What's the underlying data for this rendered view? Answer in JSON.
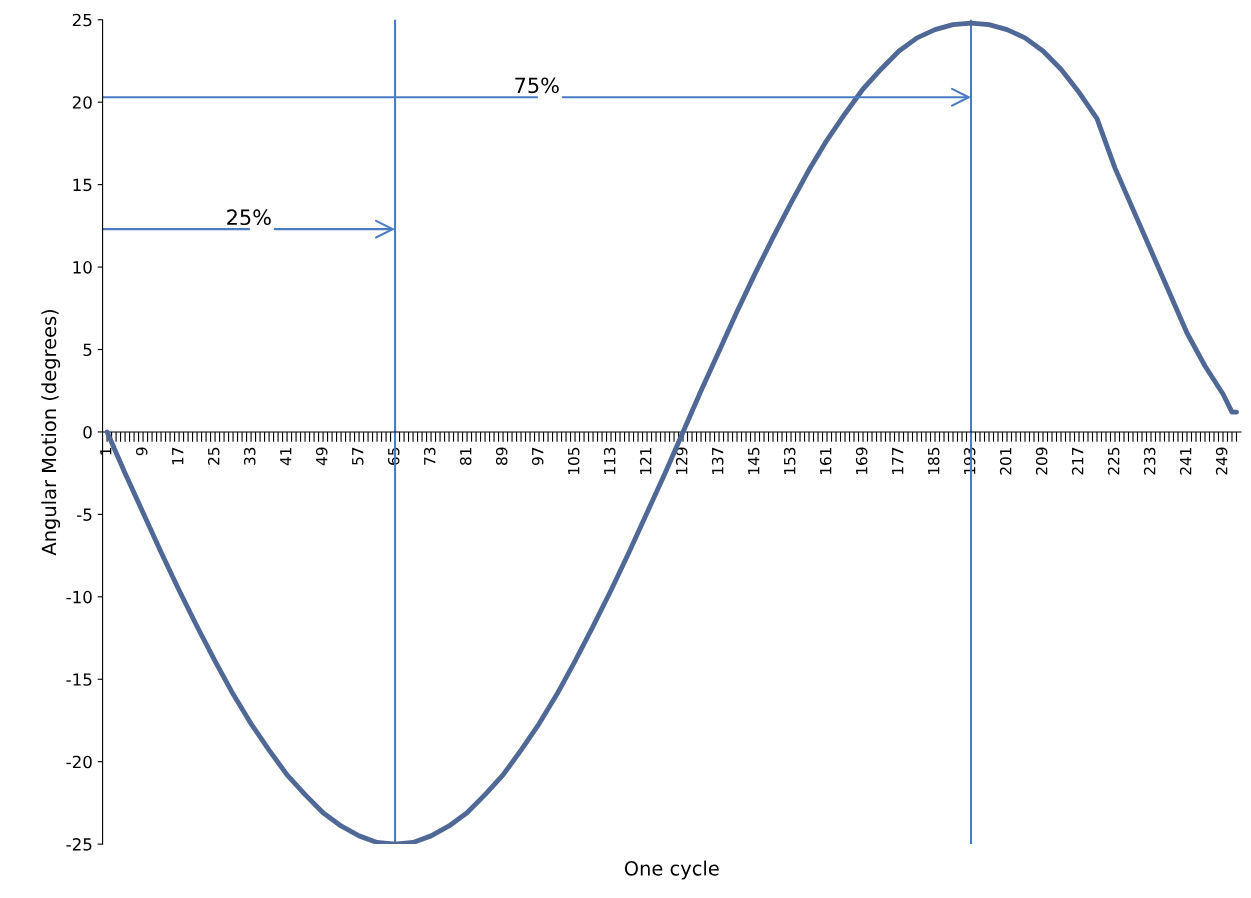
{
  "chart_data": {
    "type": "line",
    "xlabel": "One cycle",
    "ylabel": "Angular Motion (degrees)",
    "xlim": [
      0,
      253
    ],
    "ylim": [
      -25,
      25
    ],
    "yticks": [
      -25,
      -20,
      -15,
      -10,
      -5,
      0,
      5,
      10,
      15,
      20,
      25
    ],
    "xticks": [
      1,
      {
        "value": 2,
        "label": null
      },
      {
        "value": 3,
        "label": null
      },
      {
        "value": 4,
        "label": null
      },
      {
        "value": 5,
        "label": null
      },
      {
        "value": 6,
        "label": null
      },
      {
        "value": 7,
        "label": null
      },
      {
        "value": 8,
        "label": null
      },
      9,
      {
        "value": 10,
        "label": null
      },
      {
        "value": 11,
        "label": null
      },
      {
        "value": 12,
        "label": null
      },
      {
        "value": 13,
        "label": null
      },
      {
        "value": 14,
        "label": null
      },
      {
        "value": 15,
        "label": null
      },
      {
        "value": 16,
        "label": null
      },
      17,
      {
        "value": 18,
        "label": null
      },
      {
        "value": 19,
        "label": null
      },
      {
        "value": 20,
        "label": null
      },
      {
        "value": 21,
        "label": null
      },
      {
        "value": 22,
        "label": null
      },
      {
        "value": 23,
        "label": null
      },
      {
        "value": 24,
        "label": null
      },
      25,
      {
        "value": 26,
        "label": null
      },
      {
        "value": 27,
        "label": null
      },
      {
        "value": 28,
        "label": null
      },
      {
        "value": 29,
        "label": null
      },
      {
        "value": 30,
        "label": null
      },
      {
        "value": 31,
        "label": null
      },
      {
        "value": 32,
        "label": null
      },
      33,
      {
        "value": 34,
        "label": null
      },
      {
        "value": 35,
        "label": null
      },
      {
        "value": 36,
        "label": null
      },
      {
        "value": 37,
        "label": null
      },
      {
        "value": 38,
        "label": null
      },
      {
        "value": 39,
        "label": null
      },
      {
        "value": 40,
        "label": null
      },
      41,
      {
        "value": 42,
        "label": null
      },
      {
        "value": 43,
        "label": null
      },
      {
        "value": 44,
        "label": null
      },
      {
        "value": 45,
        "label": null
      },
      {
        "value": 46,
        "label": null
      },
      {
        "value": 47,
        "label": null
      },
      {
        "value": 48,
        "label": null
      },
      49,
      {
        "value": 50,
        "label": null
      },
      {
        "value": 51,
        "label": null
      },
      {
        "value": 52,
        "label": null
      },
      {
        "value": 53,
        "label": null
      },
      {
        "value": 54,
        "label": null
      },
      {
        "value": 55,
        "label": null
      },
      {
        "value": 56,
        "label": null
      },
      57,
      {
        "value": 58,
        "label": null
      },
      {
        "value": 59,
        "label": null
      },
      {
        "value": 60,
        "label": null
      },
      {
        "value": 61,
        "label": null
      },
      {
        "value": 62,
        "label": null
      },
      {
        "value": 63,
        "label": null
      },
      {
        "value": 64,
        "label": null
      },
      65,
      {
        "value": 66,
        "label": null
      },
      {
        "value": 67,
        "label": null
      },
      {
        "value": 68,
        "label": null
      },
      {
        "value": 69,
        "label": null
      },
      {
        "value": 70,
        "label": null
      },
      {
        "value": 71,
        "label": null
      },
      {
        "value": 72,
        "label": null
      },
      73,
      {
        "value": 74,
        "label": null
      },
      {
        "value": 75,
        "label": null
      },
      {
        "value": 76,
        "label": null
      },
      {
        "value": 77,
        "label": null
      },
      {
        "value": 78,
        "label": null
      },
      {
        "value": 79,
        "label": null
      },
      {
        "value": 80,
        "label": null
      },
      81,
      {
        "value": 82,
        "label": null
      },
      {
        "value": 83,
        "label": null
      },
      {
        "value": 84,
        "label": null
      },
      {
        "value": 85,
        "label": null
      },
      {
        "value": 86,
        "label": null
      },
      {
        "value": 87,
        "label": null
      },
      {
        "value": 88,
        "label": null
      },
      89,
      {
        "value": 90,
        "label": null
      },
      {
        "value": 91,
        "label": null
      },
      {
        "value": 92,
        "label": null
      },
      {
        "value": 93,
        "label": null
      },
      {
        "value": 94,
        "label": null
      },
      {
        "value": 95,
        "label": null
      },
      {
        "value": 96,
        "label": null
      },
      97,
      {
        "value": 98,
        "label": null
      },
      {
        "value": 99,
        "label": null
      },
      {
        "value": 100,
        "label": null
      },
      {
        "value": 101,
        "label": null
      },
      {
        "value": 102,
        "label": null
      },
      {
        "value": 103,
        "label": null
      },
      {
        "value": 104,
        "label": null
      },
      105,
      {
        "value": 106,
        "label": null
      },
      {
        "value": 107,
        "label": null
      },
      {
        "value": 108,
        "label": null
      },
      {
        "value": 109,
        "label": null
      },
      {
        "value": 110,
        "label": null
      },
      {
        "value": 111,
        "label": null
      },
      {
        "value": 112,
        "label": null
      },
      113,
      {
        "value": 114,
        "label": null
      },
      {
        "value": 115,
        "label": null
      },
      {
        "value": 116,
        "label": null
      },
      {
        "value": 117,
        "label": null
      },
      {
        "value": 118,
        "label": null
      },
      {
        "value": 119,
        "label": null
      },
      {
        "value": 120,
        "label": null
      },
      121,
      {
        "value": 122,
        "label": null
      },
      {
        "value": 123,
        "label": null
      },
      {
        "value": 124,
        "label": null
      },
      {
        "value": 125,
        "label": null
      },
      {
        "value": 126,
        "label": null
      },
      {
        "value": 127,
        "label": null
      },
      {
        "value": 128,
        "label": null
      },
      129,
      {
        "value": 130,
        "label": null
      },
      {
        "value": 131,
        "label": null
      },
      {
        "value": 132,
        "label": null
      },
      {
        "value": 133,
        "label": null
      },
      {
        "value": 134,
        "label": null
      },
      {
        "value": 135,
        "label": null
      },
      {
        "value": 136,
        "label": null
      },
      137,
      {
        "value": 138,
        "label": null
      },
      {
        "value": 139,
        "label": null
      },
      {
        "value": 140,
        "label": null
      },
      {
        "value": 141,
        "label": null
      },
      {
        "value": 142,
        "label": null
      },
      {
        "value": 143,
        "label": null
      },
      {
        "value": 144,
        "label": null
      },
      145,
      {
        "value": 146,
        "label": null
      },
      {
        "value": 147,
        "label": null
      },
      {
        "value": 148,
        "label": null
      },
      {
        "value": 149,
        "label": null
      },
      {
        "value": 150,
        "label": null
      },
      {
        "value": 151,
        "label": null
      },
      {
        "value": 152,
        "label": null
      },
      153,
      {
        "value": 154,
        "label": null
      },
      {
        "value": 155,
        "label": null
      },
      {
        "value": 156,
        "label": null
      },
      {
        "value": 157,
        "label": null
      },
      {
        "value": 158,
        "label": null
      },
      {
        "value": 159,
        "label": null
      },
      {
        "value": 160,
        "label": null
      },
      161,
      {
        "value": 162,
        "label": null
      },
      {
        "value": 163,
        "label": null
      },
      {
        "value": 164,
        "label": null
      },
      {
        "value": 165,
        "label": null
      },
      {
        "value": 166,
        "label": null
      },
      {
        "value": 167,
        "label": null
      },
      {
        "value": 168,
        "label": null
      },
      169,
      {
        "value": 170,
        "label": null
      },
      {
        "value": 171,
        "label": null
      },
      {
        "value": 172,
        "label": null
      },
      {
        "value": 173,
        "label": null
      },
      {
        "value": 174,
        "label": null
      },
      {
        "value": 175,
        "label": null
      },
      {
        "value": 176,
        "label": null
      },
      177,
      {
        "value": 178,
        "label": null
      },
      {
        "value": 179,
        "label": null
      },
      {
        "value": 180,
        "label": null
      },
      {
        "value": 181,
        "label": null
      },
      {
        "value": 182,
        "label": null
      },
      {
        "value": 183,
        "label": null
      },
      {
        "value": 184,
        "label": null
      },
      185,
      {
        "value": 186,
        "label": null
      },
      {
        "value": 187,
        "label": null
      },
      {
        "value": 188,
        "label": null
      },
      {
        "value": 189,
        "label": null
      },
      {
        "value": 190,
        "label": null
      },
      {
        "value": 191,
        "label": null
      },
      {
        "value": 192,
        "label": null
      },
      193,
      {
        "value": 194,
        "label": null
      },
      {
        "value": 195,
        "label": null
      },
      {
        "value": 196,
        "label": null
      },
      {
        "value": 197,
        "label": null
      },
      {
        "value": 198,
        "label": null
      },
      {
        "value": 199,
        "label": null
      },
      {
        "value": 200,
        "label": null
      },
      201,
      {
        "value": 202,
        "label": null
      },
      {
        "value": 203,
        "label": null
      },
      {
        "value": 204,
        "label": null
      },
      {
        "value": 205,
        "label": null
      },
      {
        "value": 206,
        "label": null
      },
      {
        "value": 207,
        "label": null
      },
      {
        "value": 208,
        "label": null
      },
      209,
      {
        "value": 210,
        "label": null
      },
      {
        "value": 211,
        "label": null
      },
      {
        "value": 212,
        "label": null
      },
      {
        "value": 213,
        "label": null
      },
      {
        "value": 214,
        "label": null
      },
      {
        "value": 215,
        "label": null
      },
      {
        "value": 216,
        "label": null
      },
      217,
      {
        "value": 218,
        "label": null
      },
      {
        "value": 219,
        "label": null
      },
      {
        "value": 220,
        "label": null
      },
      {
        "value": 221,
        "label": null
      },
      {
        "value": 222,
        "label": null
      },
      {
        "value": 223,
        "label": null
      },
      {
        "value": 224,
        "label": null
      },
      225,
      {
        "value": 226,
        "label": null
      },
      {
        "value": 227,
        "label": null
      },
      {
        "value": 228,
        "label": null
      },
      {
        "value": 229,
        "label": null
      },
      {
        "value": 230,
        "label": null
      },
      {
        "value": 231,
        "label": null
      },
      {
        "value": 232,
        "label": null
      },
      233,
      {
        "value": 234,
        "label": null
      },
      {
        "value": 235,
        "label": null
      },
      {
        "value": 236,
        "label": null
      },
      {
        "value": 237,
        "label": null
      },
      {
        "value": 238,
        "label": null
      },
      {
        "value": 239,
        "label": null
      },
      {
        "value": 240,
        "label": null
      },
      241,
      {
        "value": 242,
        "label": null
      },
      {
        "value": 243,
        "label": null
      },
      {
        "value": 244,
        "label": null
      },
      {
        "value": 245,
        "label": null
      },
      {
        "value": 246,
        "label": null
      },
      {
        "value": 247,
        "label": null
      },
      {
        "value": 248,
        "label": null
      },
      249,
      {
        "value": 250,
        "label": null
      },
      {
        "value": 251,
        "label": null
      },
      {
        "value": 252,
        "label": null
      }
    ],
    "series": [
      {
        "color": "#4f6896",
        "x": [
          1,
          5,
          9,
          13,
          17,
          21,
          25,
          29,
          33,
          37,
          41,
          45,
          49,
          53,
          57,
          61,
          65,
          69,
          73,
          77,
          81,
          85,
          89,
          93,
          97,
          101,
          105,
          109,
          113,
          117,
          121,
          125,
          129,
          133,
          137,
          141,
          145,
          149,
          153,
          157,
          161,
          165,
          169,
          173,
          177,
          181,
          185,
          189,
          193,
          197,
          201,
          205,
          209,
          213,
          217,
          221,
          225,
          229,
          233,
          237,
          241,
          245,
          249,
          251,
          252
        ],
        "values": [
          0,
          -2.5,
          -4.9,
          -7.3,
          -9.6,
          -11.8,
          -13.9,
          -15.9,
          -17.7,
          -19.3,
          -20.8,
          -22.0,
          -23.1,
          -23.9,
          -24.5,
          -24.9,
          -25.0,
          -24.9,
          -24.5,
          -23.9,
          -23.1,
          -22.0,
          -20.8,
          -19.3,
          -17.7,
          -15.9,
          -13.9,
          -11.8,
          -9.6,
          -7.3,
          -4.9,
          -2.5,
          0,
          2.5,
          4.9,
          7.3,
          9.6,
          11.8,
          13.9,
          15.9,
          17.7,
          19.3,
          20.8,
          22.0,
          23.1,
          23.9,
          24.4,
          24.7,
          24.8,
          24.7,
          24.4,
          23.9,
          23.1,
          22.0,
          20.6,
          19.0,
          16.0,
          13.5,
          11.0,
          8.5,
          6.0,
          4.0,
          2.3,
          1.2,
          1.2
        ]
      }
    ],
    "ref_lines": [
      {
        "axis": "x",
        "value": 65,
        "color": "#4a7cc4"
      },
      {
        "axis": "x",
        "value": 193,
        "color": "#4a7cc4"
      }
    ],
    "annotations": [
      {
        "text": "25%",
        "x": 65,
        "y": 12.3
      },
      {
        "text": "75%",
        "x": 193,
        "y": 20.3
      }
    ],
    "grid": false,
    "legend": false,
    "marker": "none",
    "line_style": "solid"
  }
}
